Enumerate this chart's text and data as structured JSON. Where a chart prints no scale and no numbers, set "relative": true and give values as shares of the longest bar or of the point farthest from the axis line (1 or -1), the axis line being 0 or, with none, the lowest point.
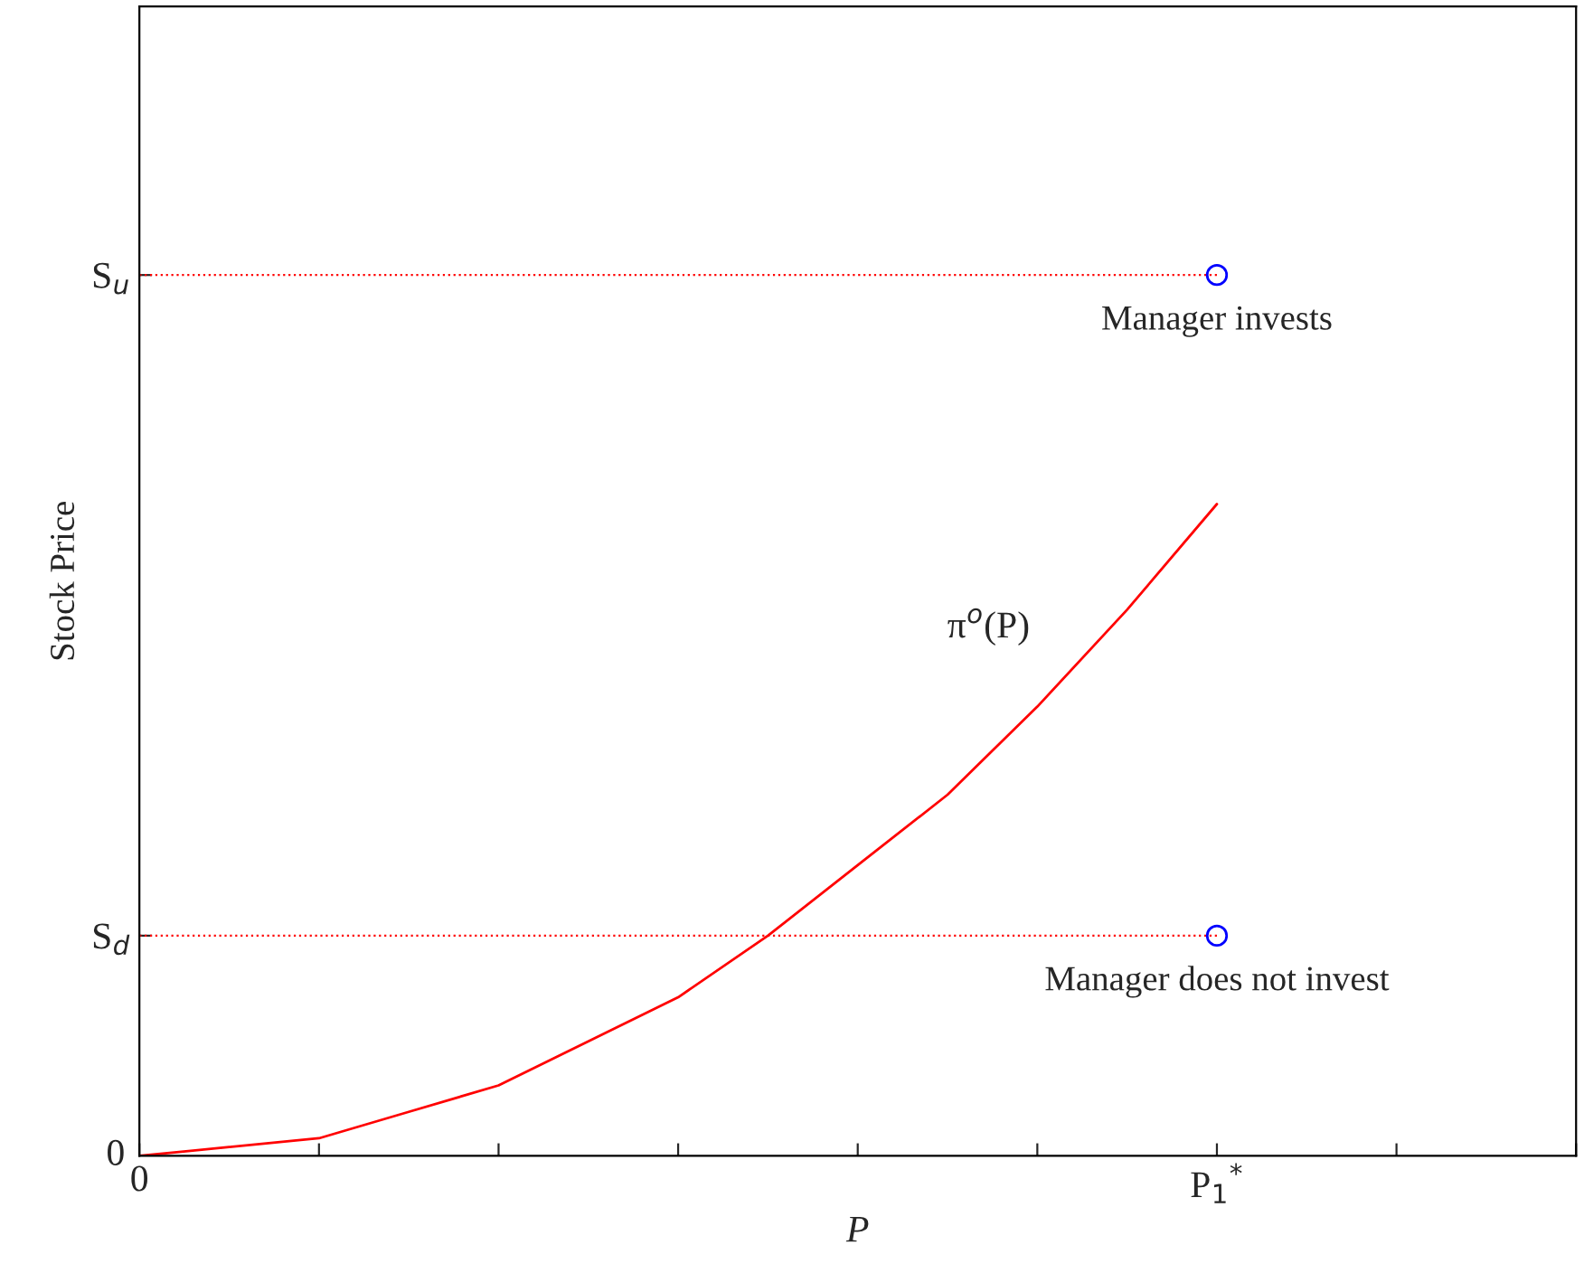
{
  "chart_data": {
    "type": "line",
    "relative": true,
    "xlabel": "P",
    "ylabel": "Stock Price",
    "categories": [
      "0",
      null,
      null,
      null,
      null,
      null,
      null,
      null,
      null,
      null,
      null,
      null,
      "P$_{1}$$^{*}$",
      null,
      null,
      null,
      null
    ],
    "grid": false,
    "series": [
      {
        "color": "#ff0000",
        "line_style": "solid",
        "values": [
          0,
          0.01,
          0.02,
          0.05,
          0.08,
          0.13,
          0.18,
          0.25,
          0.33,
          0.41,
          0.51,
          0.62,
          0.74,
          null,
          null,
          null,
          null
        ]
      },
      {
        "type": "scatter",
        "color": "#0000ff",
        "marker": "circle",
        "values": [
          null,
          null,
          null,
          null,
          null,
          null,
          null,
          null,
          null,
          null,
          null,
          null,
          1,
          null,
          null,
          null,
          null
        ]
      },
      {
        "type": "scatter",
        "color": "#0000ff",
        "marker": "circle",
        "values": [
          null,
          null,
          null,
          null,
          null,
          null,
          null,
          null,
          null,
          null,
          null,
          null,
          0.25,
          null,
          null,
          null,
          null
        ]
      }
    ],
    "ref_lines": [
      {
        "axis": "y",
        "value": 1,
        "label": "S$_{u}$",
        "color": "#ff0000",
        "line_style": "dotted"
      },
      {
        "axis": "y",
        "value": 0.25,
        "label": "S$_{d}$",
        "color": "#ff0000",
        "line_style": "dotted"
      }
    ],
    "annotations": [
      "0",
      "π$^{o}$(P)",
      {
        "text": "Manager invests",
        "x": "P$_{1}$$^{*}$",
        "y": 1
      },
      {
        "text": "Manager does not invest",
        "x": "P$_{1}$$^{*}$",
        "y": 0.25
      }
    ]
  }
}
